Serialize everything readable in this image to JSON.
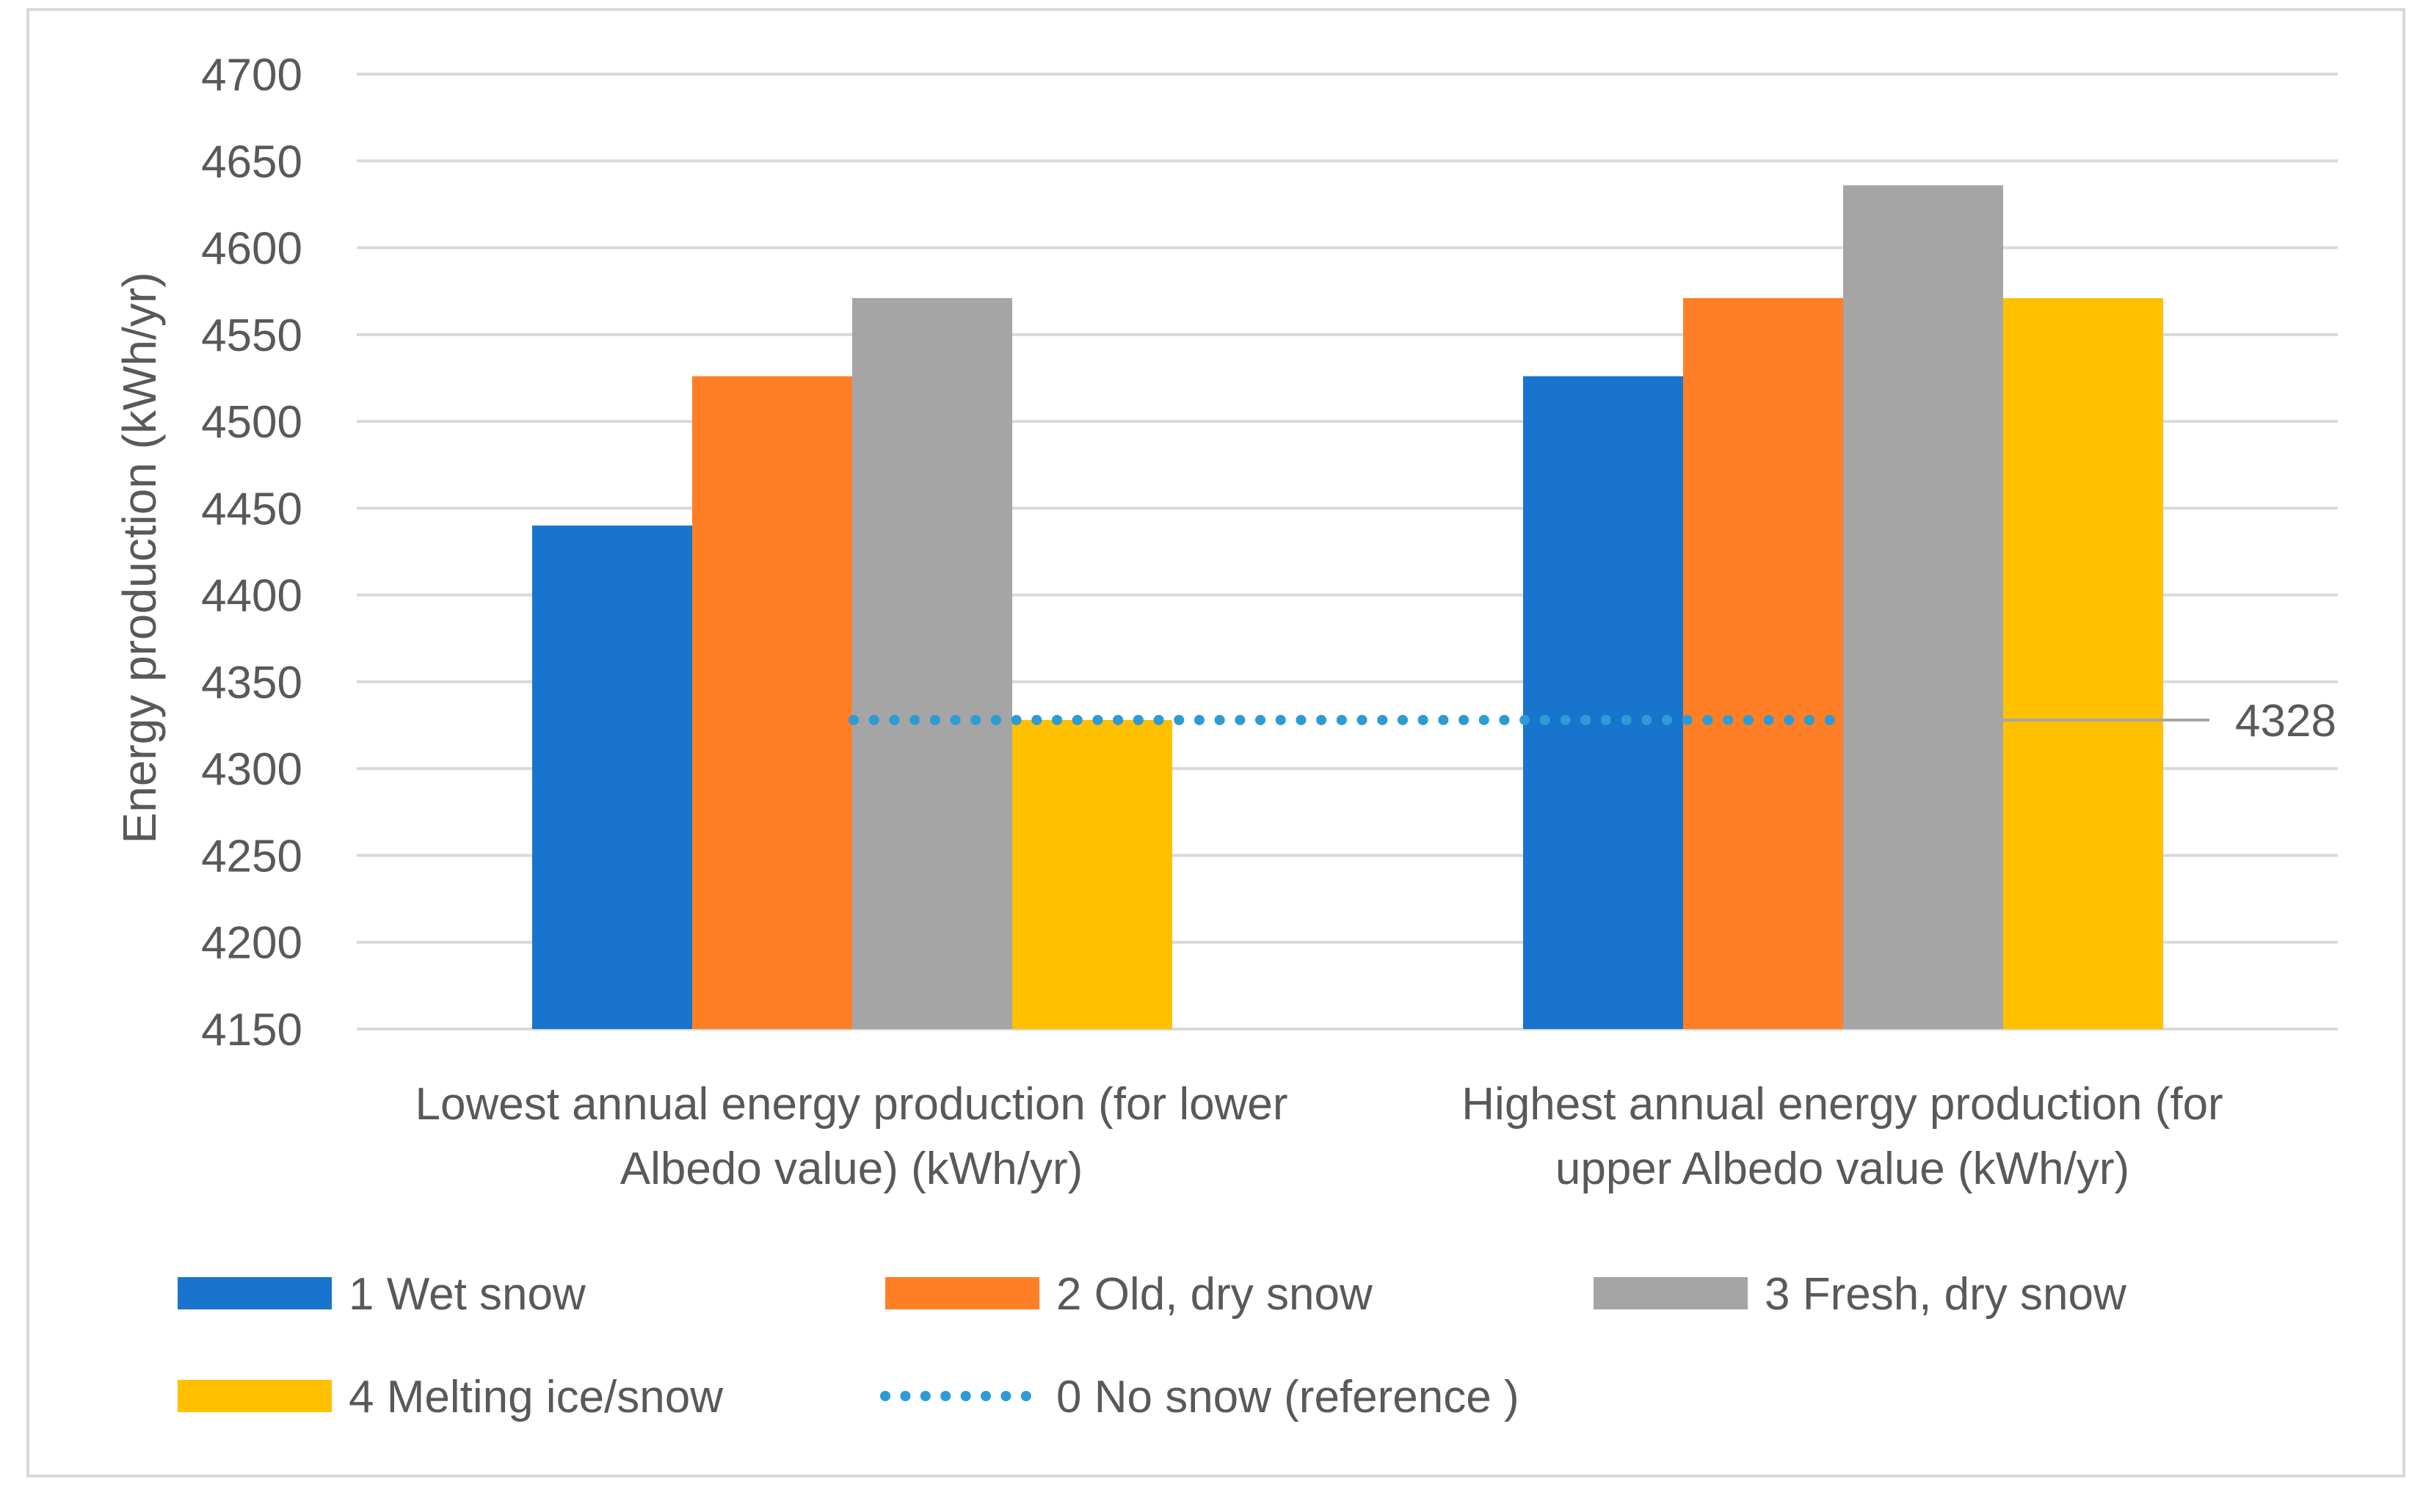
{
  "chart_data": {
    "type": "bar",
    "title": "",
    "xlabel": "",
    "ylabel": "Energy production (kWh/yr)",
    "ylim": [
      4150,
      4700
    ],
    "yticks": [
      4150,
      4200,
      4250,
      4300,
      4350,
      4400,
      4450,
      4500,
      4550,
      4600,
      4650,
      4700
    ],
    "grid": true,
    "legend_position": "bottom",
    "categories": [
      [
        "Lowest annual energy production (for lower",
        "Albedo value) (kWh/yr)"
      ],
      [
        "Highest annual energy production (for",
        "upper Albedo value (kWh/yr)"
      ]
    ],
    "series": [
      {
        "name": "1 Wet snow",
        "values": [
          4440,
          4526
        ],
        "color": "#1874CD"
      },
      {
        "name": "2 Old, dry snow",
        "values": [
          4526,
          4571
        ],
        "color": "#FF7F27"
      },
      {
        "name": "3 Fresh, dry snow",
        "values": [
          4571,
          4636
        ],
        "color": "#A5A5A5"
      },
      {
        "name": "4 Melting ice/snow",
        "values": [
          4328,
          4571
        ],
        "color": "#FFC000"
      }
    ],
    "reference": {
      "name": "0 No snow (reference )",
      "value": 4328,
      "label": "4328",
      "color": "#2E9BD6",
      "style": "dotted"
    },
    "colors": {
      "grid": "#D9D9D9",
      "text": "#595959",
      "border": "#D9D9D9",
      "leader": "#A6A6A6"
    }
  }
}
